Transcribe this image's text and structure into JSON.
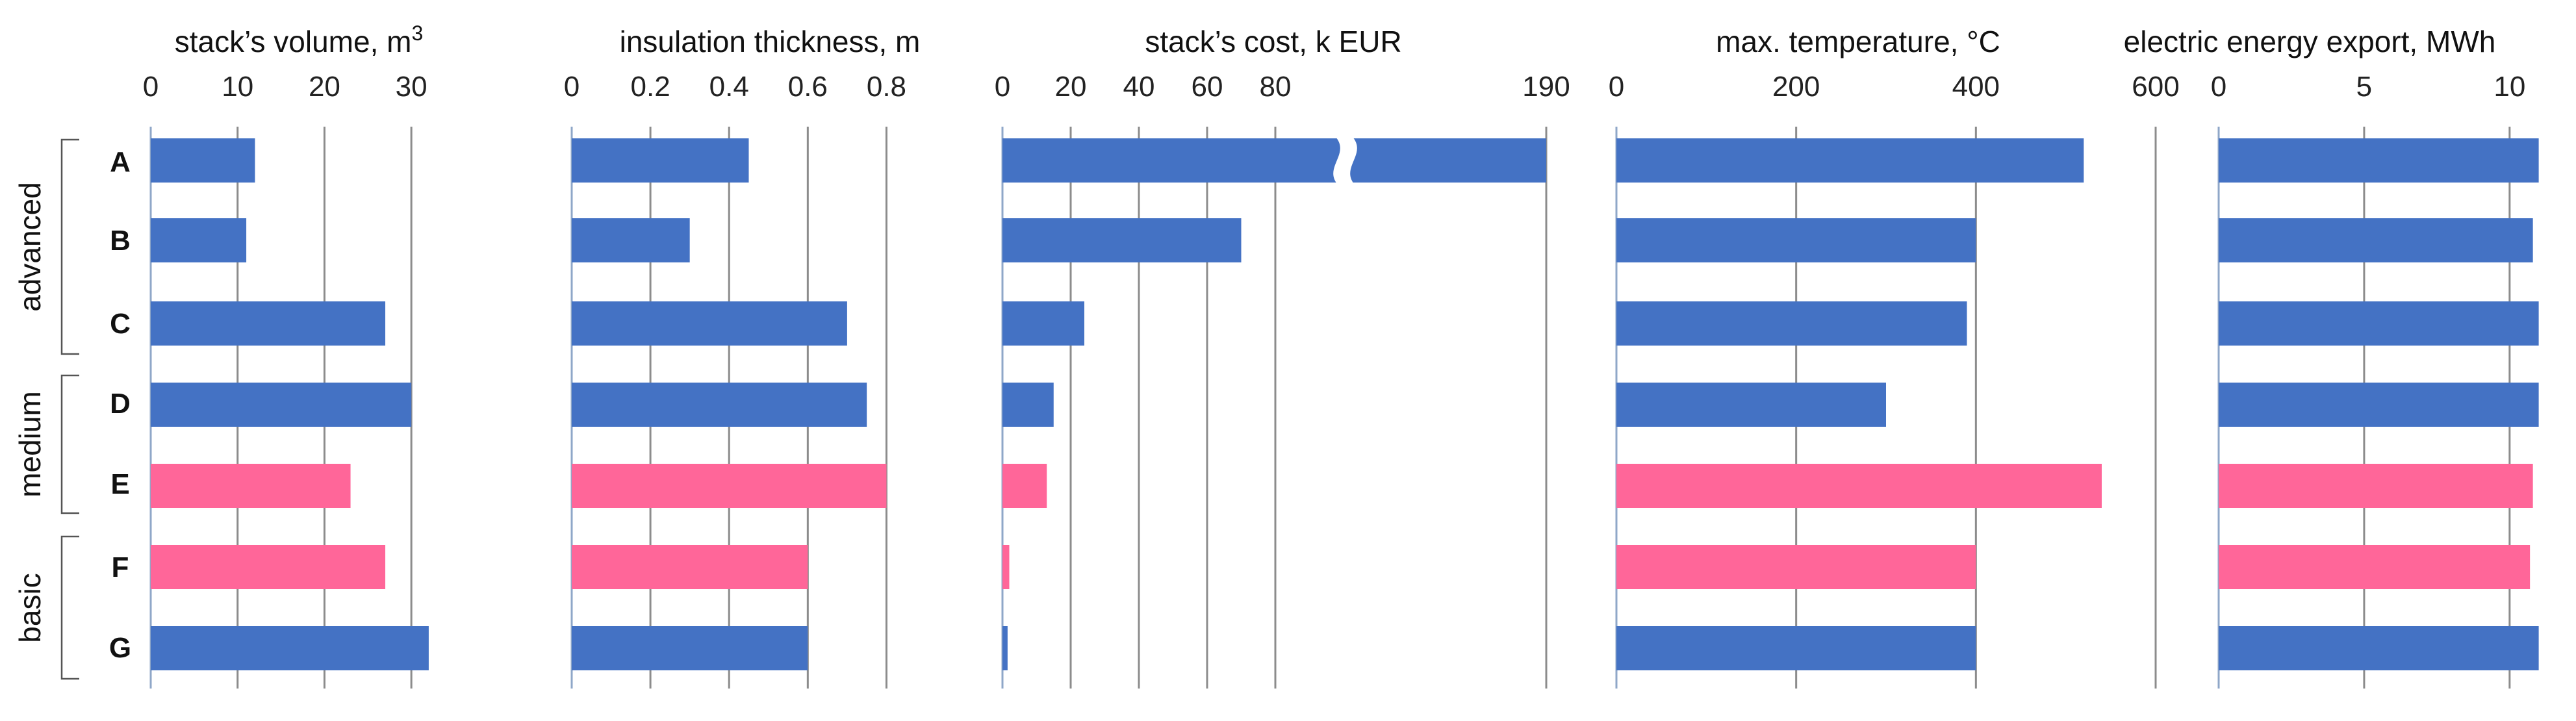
{
  "chart_data": {
    "type": "bar",
    "orientation": "horizontal",
    "categories": [
      "A",
      "B",
      "C",
      "D",
      "E",
      "F",
      "G"
    ],
    "groups": [
      {
        "label": "advanced",
        "members": [
          "A",
          "B",
          "C"
        ]
      },
      {
        "label": "medium",
        "members": [
          "D",
          "E"
        ]
      },
      {
        "label": "basic",
        "members": [
          "F",
          "G"
        ]
      }
    ],
    "colors": {
      "default": "#4472c4",
      "highlight": "#ff6699"
    },
    "highlighted": [
      "E",
      "F"
    ],
    "grid": true,
    "panels": [
      {
        "title": "stack’s volume, m",
        "title_sup": "3",
        "xlim": [
          0,
          35
        ],
        "ticks": [
          0,
          10,
          20,
          30
        ],
        "tick_labels": [
          "0",
          "10",
          "20",
          "30"
        ],
        "values": [
          12,
          11,
          27,
          30,
          23,
          27,
          32
        ]
      },
      {
        "title": "insulation thickness, m",
        "xlim": [
          0,
          0.9
        ],
        "ticks": [
          0,
          0.2,
          0.4,
          0.6,
          0.8
        ],
        "tick_labels": [
          "0",
          "0.2",
          "0.4",
          "0.6",
          "0.8"
        ],
        "values": [
          0.45,
          0.3,
          0.7,
          0.75,
          0.8,
          0.6,
          0.6
        ]
      },
      {
        "title": "stack’s cost, k EUR",
        "xlim": [
          0,
          190
        ],
        "axis_break": true,
        "ticks": [
          0,
          20,
          40,
          60,
          80,
          190
        ],
        "tick_labels": [
          "0",
          "20",
          "40",
          "60",
          "80",
          "190"
        ],
        "values": [
          190,
          70,
          24,
          15,
          13,
          2,
          1.5
        ]
      },
      {
        "title": "max. temperature, °C",
        "xlim": [
          0,
          600
        ],
        "ticks": [
          0,
          200,
          400,
          600
        ],
        "tick_labels": [
          "0",
          "200",
          "400",
          "600"
        ],
        "values": [
          520,
          400,
          390,
          300,
          540,
          400,
          400
        ]
      },
      {
        "title": "electric energy export, MWh",
        "xlim": [
          0,
          11.5
        ],
        "ticks": [
          0,
          5,
          10
        ],
        "tick_labels": [
          "0",
          "5",
          "10"
        ],
        "values": [
          11,
          10.8,
          11,
          11,
          10.8,
          10.7,
          11
        ]
      }
    ]
  }
}
